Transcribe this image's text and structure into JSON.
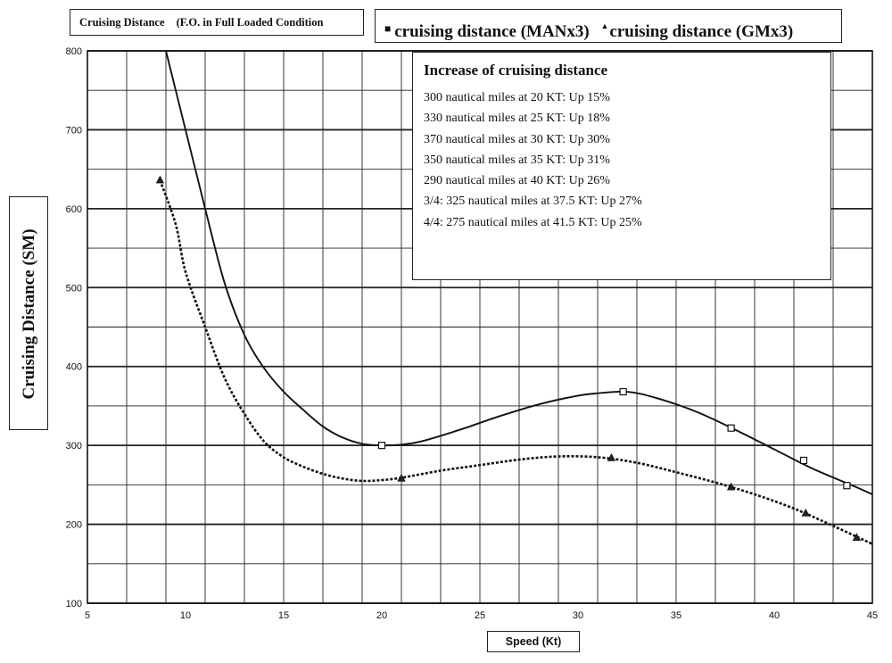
{
  "header": {
    "title": "Cruising Distance",
    "subtitle": "(F.O. in Full Loaded Condition"
  },
  "legend": {
    "items": [
      {
        "marker": "■",
        "label": "cruising distance (MANx3)"
      },
      {
        "marker": "▲",
        "label": "cruising distance (GMx3)"
      }
    ]
  },
  "annotation": {
    "heading": "Increase of cruising distance",
    "lines": [
      "300 nautical miles at 20 KT: Up 15%",
      "330 nautical miles at 25 KT: Up 18%",
      "370 nautical miles at 30 KT: Up 30%",
      "350 nautical miles at 35 KT: Up 31%",
      "290 nautical miles at 40 KT: Up 26%",
      "3/4: 325 nautical miles at 37.5 KT: Up 27%",
      "4/4: 275 nautical miles at 41.5 KT: Up 25%"
    ]
  },
  "colors": {
    "line": "#111111",
    "grid": "#222222"
  },
  "chart_data": {
    "type": "line",
    "title": "Cruising Distance (F.O. in Full Loaded Condition",
    "xlabel": "Speed (Kt)",
    "ylabel": "Cruising Distance (SM)",
    "xlim": [
      5,
      45
    ],
    "ylim": [
      100,
      800
    ],
    "xticks": [
      5,
      10,
      15,
      20,
      25,
      30,
      35,
      40,
      45
    ],
    "yticks": [
      100,
      200,
      300,
      400,
      500,
      600,
      700,
      800
    ],
    "grid": true,
    "series": [
      {
        "name": "cruising distance (MANx3)",
        "style": "solid",
        "marker": "square",
        "markers": [
          [
            20,
            300
          ],
          [
            32.3,
            368
          ],
          [
            37.8,
            322
          ],
          [
            41.5,
            281
          ],
          [
            43.7,
            249
          ]
        ],
        "curve": [
          [
            9,
            800
          ],
          [
            10,
            700
          ],
          [
            11,
            600
          ],
          [
            12,
            505
          ],
          [
            13,
            440
          ],
          [
            14,
            398
          ],
          [
            15,
            368
          ],
          [
            16,
            345
          ],
          [
            17,
            324
          ],
          [
            18,
            310
          ],
          [
            19,
            302
          ],
          [
            20,
            300
          ],
          [
            21,
            301
          ],
          [
            22,
            305
          ],
          [
            24,
            320
          ],
          [
            26,
            337
          ],
          [
            28,
            352
          ],
          [
            30,
            363
          ],
          [
            31,
            366
          ],
          [
            32.5,
            368
          ],
          [
            34,
            360
          ],
          [
            36,
            343
          ],
          [
            38,
            320
          ],
          [
            40,
            295
          ],
          [
            42,
            270
          ],
          [
            44,
            249
          ],
          [
            45,
            238
          ]
        ]
      },
      {
        "name": "cruising distance (GMx3)",
        "style": "dashed",
        "marker": "triangle",
        "markers": [
          [
            8.7,
            636
          ],
          [
            21,
            258
          ],
          [
            31.7,
            284
          ],
          [
            37.8,
            247
          ],
          [
            41.6,
            214
          ],
          [
            44.2,
            183
          ]
        ],
        "curve": [
          [
            8.7,
            636
          ],
          [
            9.5,
            580
          ],
          [
            10,
            520
          ],
          [
            11,
            450
          ],
          [
            12,
            385
          ],
          [
            13,
            340
          ],
          [
            14,
            305
          ],
          [
            15,
            285
          ],
          [
            16,
            273
          ],
          [
            17,
            264
          ],
          [
            18,
            258
          ],
          [
            19,
            255
          ],
          [
            20,
            256
          ],
          [
            21,
            259
          ],
          [
            23,
            268
          ],
          [
            25,
            275
          ],
          [
            27,
            282
          ],
          [
            29,
            286
          ],
          [
            31,
            285
          ],
          [
            33,
            278
          ],
          [
            35,
            266
          ],
          [
            37,
            253
          ],
          [
            39,
            238
          ],
          [
            41,
            220
          ],
          [
            43,
            198
          ],
          [
            45,
            175
          ]
        ]
      }
    ]
  }
}
